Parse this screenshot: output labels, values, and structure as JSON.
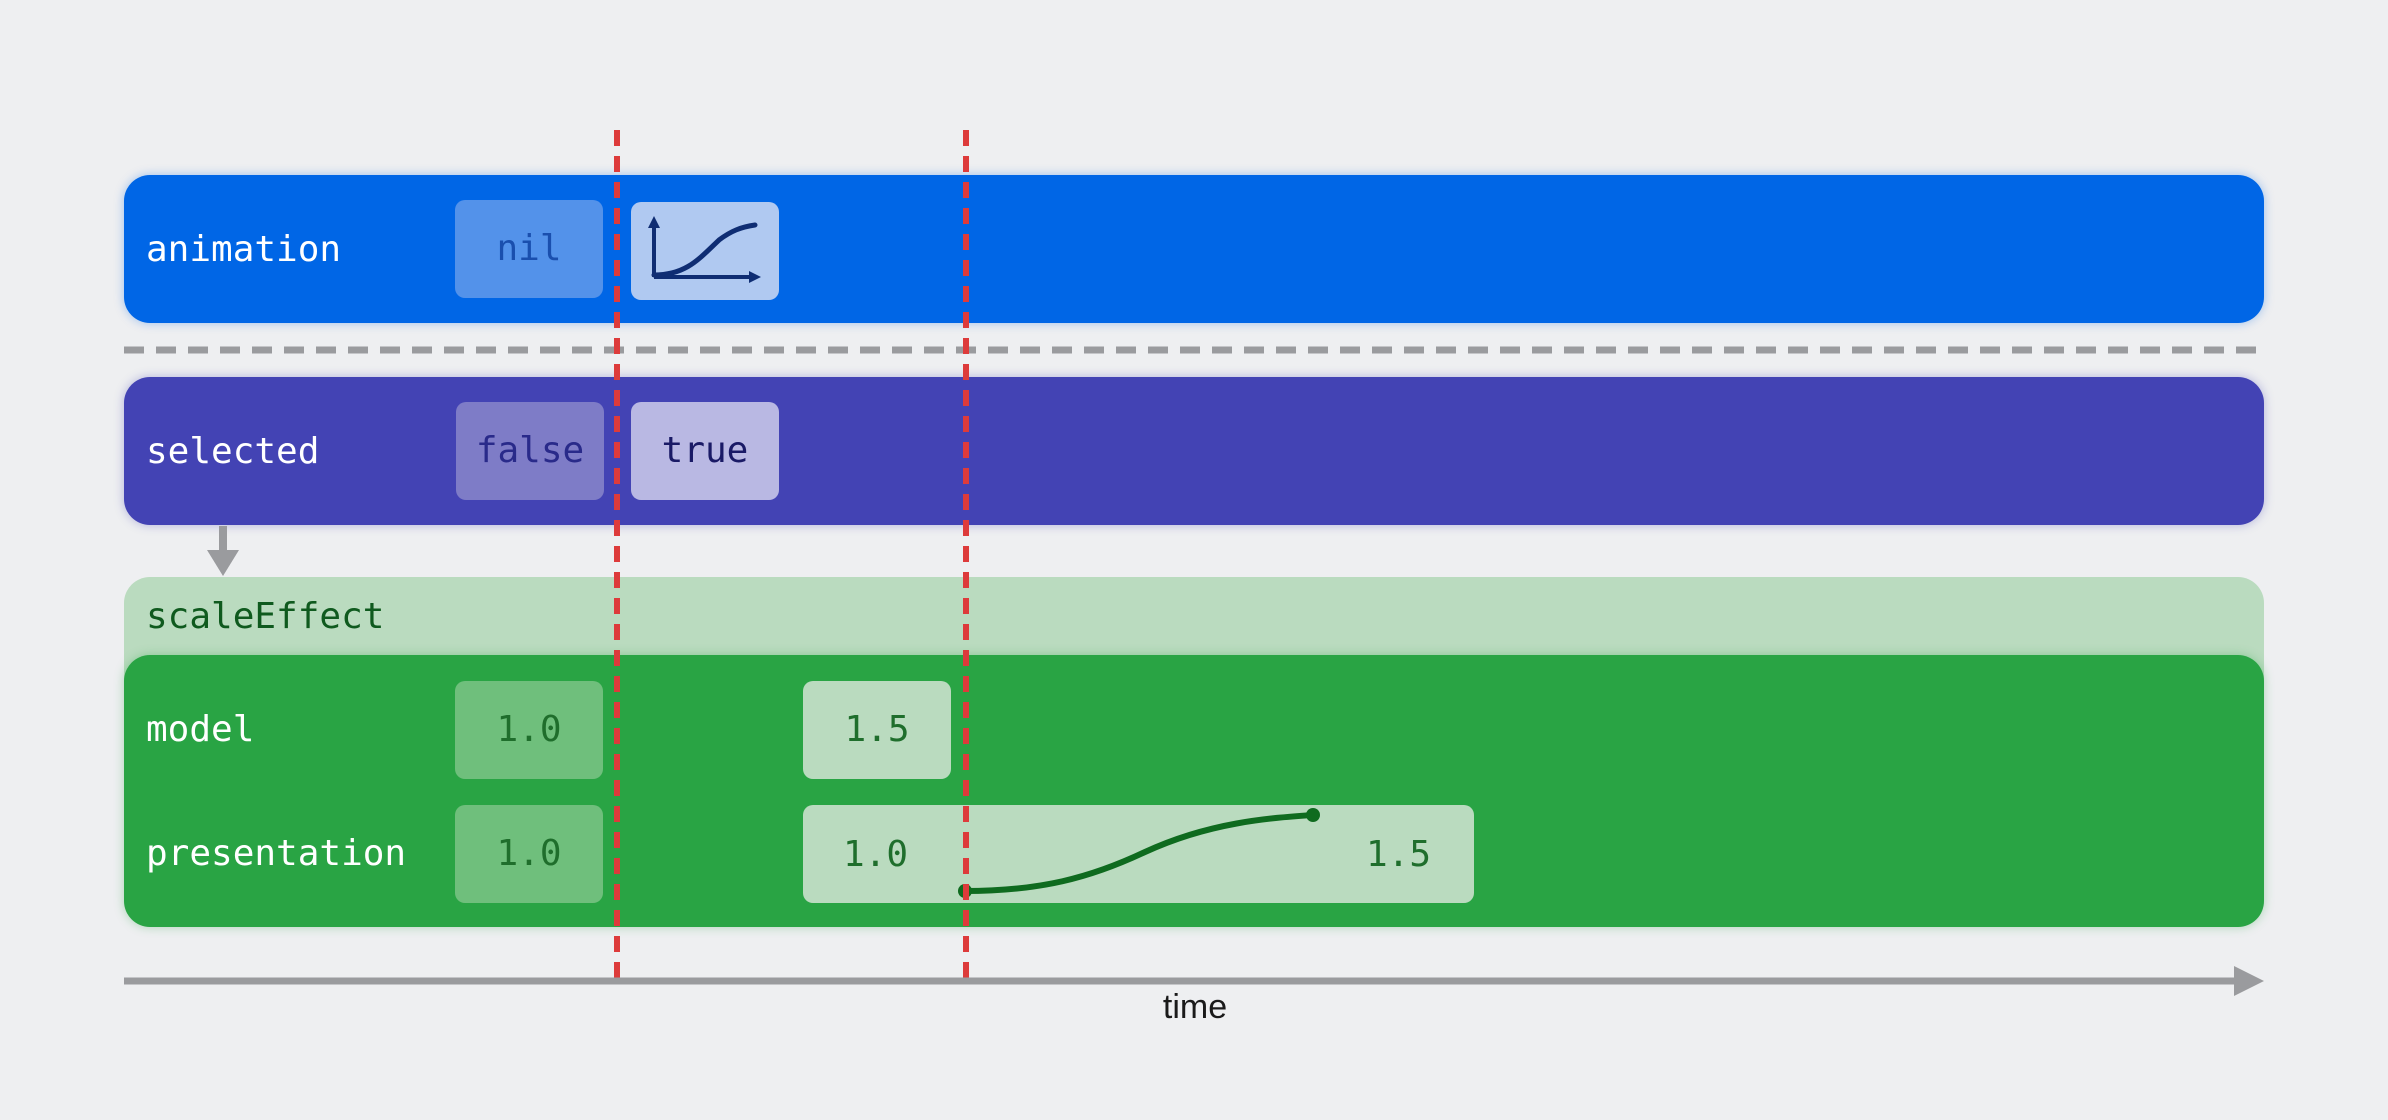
{
  "rows": {
    "animation": {
      "label": "animation",
      "chips": [
        {
          "text": "nil"
        },
        {
          "icon": "animation-curve-icon"
        }
      ]
    },
    "selected": {
      "label": "selected",
      "chips": [
        {
          "text": "false"
        },
        {
          "text": "true"
        }
      ]
    },
    "scaleEffect": {
      "label": "scaleEffect",
      "model": {
        "label": "model",
        "values": [
          "1.0",
          "1.5"
        ]
      },
      "presentation": {
        "label": "presentation",
        "values": [
          "1.0"
        ],
        "transition": {
          "from": "1.0",
          "to": "1.5"
        }
      }
    }
  },
  "axis": {
    "label": "time"
  },
  "colors": {
    "background": "#eeeff1",
    "animation_row": "#0066e6",
    "selected_row": "#4343b4",
    "scale_header": "#badbbf",
    "scale_row": "#29a444",
    "marker_line": "#dd3b3b",
    "separator": "#9a9b9e",
    "axis": "#9a9b9e",
    "curve": "#0f6b1f"
  }
}
